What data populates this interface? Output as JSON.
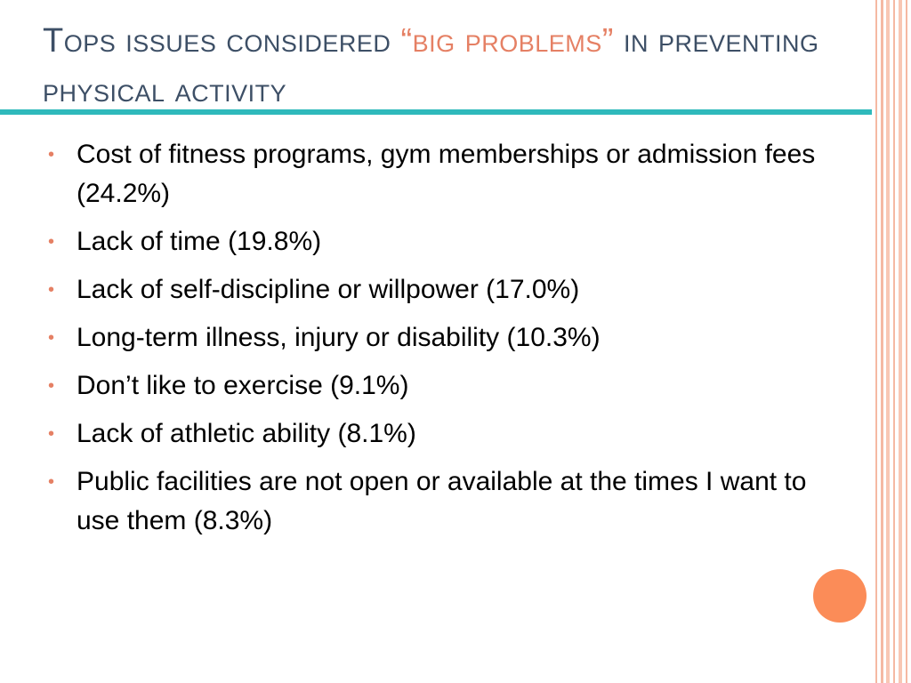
{
  "slide": {
    "title": {
      "part1": "Tops issues considered ",
      "accent": "“big problems”",
      "part2": " in preventing physical activity"
    },
    "bullet_glyph": "•",
    "items": [
      "Cost of fitness programs, gym memberships or admission fees (24.2%)",
      "Lack of time (19.8%)",
      "Lack of self-discipline or willpower (17.0%)",
      "Long-term illness, injury or disability (10.3%)",
      "Don’t like to exercise (9.1%)",
      "Lack of athletic ability (8.1%)",
      "Public facilities are not open or available at the times I want to use them (8.3%)"
    ]
  },
  "colors": {
    "title": "#3d4f66",
    "accent": "#e58064",
    "rule": "#2fb9bb",
    "stripes": "#f5b9a3",
    "circle": "#fb8c58"
  }
}
